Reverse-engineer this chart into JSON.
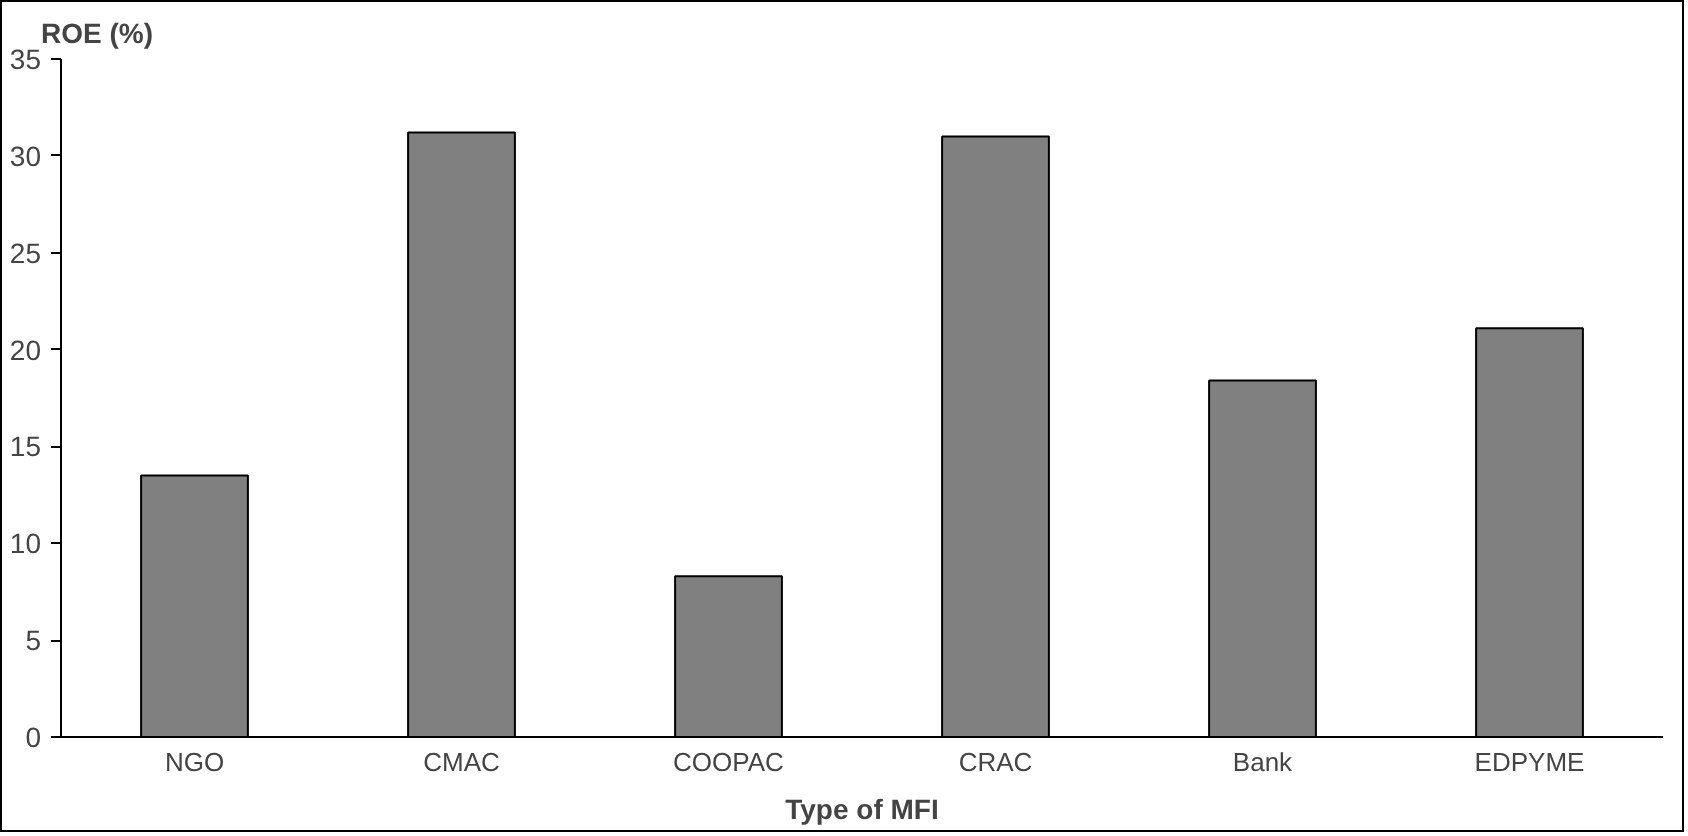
{
  "chart_data": {
    "type": "bar",
    "ylabel": "ROE (%)",
    "xlabel": "Type of MFI",
    "categories": [
      "NGO",
      "CMAC",
      "COOPAC",
      "CRAC",
      "Bank",
      "EDPYME"
    ],
    "values": [
      13.5,
      31.2,
      8.3,
      31.0,
      18.4,
      21.1
    ],
    "color": "#808080",
    "ylim": [
      0,
      35
    ],
    "yticks": [
      0,
      5,
      10,
      15,
      20,
      25,
      30,
      35
    ],
    "grid": false
  }
}
